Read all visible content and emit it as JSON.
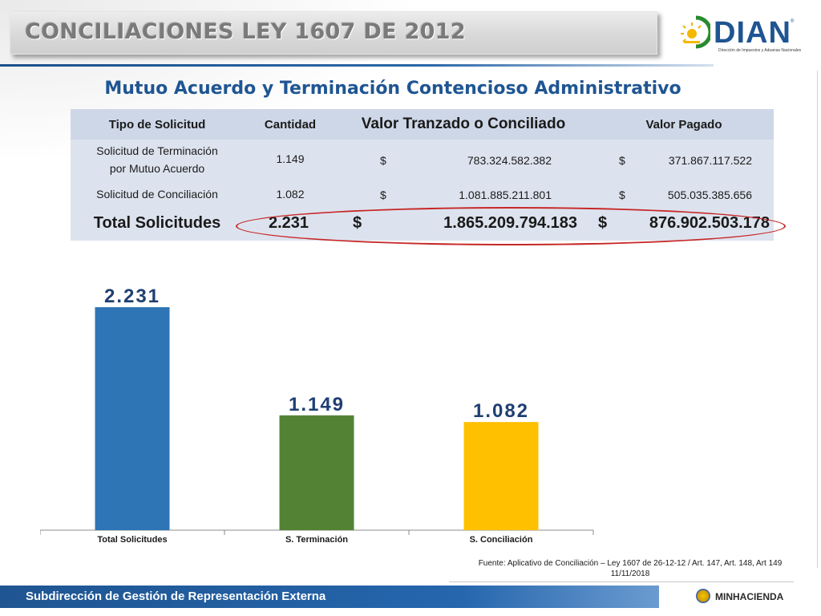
{
  "header": {
    "title": "CONCILIACIONES  LEY 1607 DE 2012",
    "logo_text": "DIAN",
    "logo_mark": "®",
    "logo_subtext": "Dirección de Impuestos y Aduanas Nacionales"
  },
  "subtitle": "Mutuo Acuerdo y Terminación Contencioso Administrativo",
  "table": {
    "headers": {
      "tipo": "Tipo de Solicitud",
      "cantidad": "Cantidad",
      "valor_tranzado": "Valor Tranzado o Conciliado",
      "valor_pagado": "Valor Pagado"
    },
    "rows": [
      {
        "tipo_line1": "Solicitud de Terminación",
        "tipo_line2": "por Mutuo Acuerdo",
        "cantidad": "1.149",
        "currency1": "$",
        "valor_tranzado": "783.324.582.382",
        "currency2": "$",
        "valor_pagado": "371.867.117.522"
      },
      {
        "tipo_line1": "Solicitud de Conciliación",
        "tipo_line2": "",
        "cantidad": "1.082",
        "currency1": "$",
        "valor_tranzado": "1.081.885.211.801",
        "currency2": "$",
        "valor_pagado": "505.035.385.656"
      }
    ],
    "total": {
      "label": "Total Solicitudes",
      "cantidad": "2.231",
      "currency1": "$",
      "valor_tranzado": "1.865.209.794.183",
      "currency2": "$",
      "valor_pagado": "876.902.503.178"
    }
  },
  "chart_data": {
    "type": "bar",
    "categories": [
      "Total Solicitudes",
      "S. Terminación",
      "S. Conciliación"
    ],
    "values": [
      2231,
      1149,
      1082
    ],
    "data_labels": [
      "2.231",
      "1.149",
      "1.082"
    ],
    "colors": [
      "#2e75b6",
      "#548235",
      "#ffc000"
    ],
    "title": "",
    "xlabel": "",
    "ylabel": "",
    "ylim": [
      0,
      2231
    ],
    "grid": false,
    "legend": "none"
  },
  "footnote": {
    "source": "Fuente: Aplicativo de Conciliación – Ley 1607 de 26-12-12 / Art. 147, Art. 148, Art 149",
    "date": "11/11/2018"
  },
  "footer": {
    "text": "Subdirección de Gestión de Representación Externa",
    "ministry": "MINHACIENDA"
  },
  "colors": {
    "brand_blue": "#1f5592",
    "highlight_red": "#c62828"
  }
}
